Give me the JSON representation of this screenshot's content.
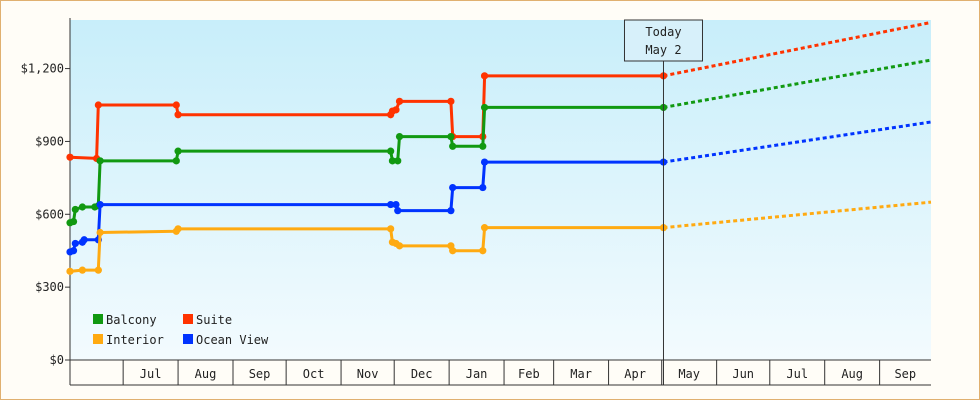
{
  "chart_data": {
    "type": "line",
    "title": "",
    "xlabel": "",
    "ylabel": "",
    "ylim": [
      0,
      1400
    ],
    "y_ticks": [
      0,
      300,
      600,
      900,
      1200
    ],
    "y_tick_labels": [
      "$0",
      "$300",
      "$600",
      "$900",
      "$1,200"
    ],
    "x_range": [
      "2018-06-01",
      "2019-09-30"
    ],
    "month_labels": [
      {
        "label": "Jul",
        "start": "2018-07-01",
        "end": "2018-08-01"
      },
      {
        "label": "Aug",
        "start": "2018-08-01",
        "end": "2018-09-01"
      },
      {
        "label": "Sep",
        "start": "2018-09-01",
        "end": "2018-10-01"
      },
      {
        "label": "Oct",
        "start": "2018-10-01",
        "end": "2018-11-01"
      },
      {
        "label": "Nov",
        "start": "2018-11-01",
        "end": "2018-12-01"
      },
      {
        "label": "Dec",
        "start": "2018-12-01",
        "end": "2019-01-01"
      },
      {
        "label": "Jan",
        "start": "2019-01-01",
        "end": "2019-02-01"
      },
      {
        "label": "Feb",
        "start": "2019-02-01",
        "end": "2019-03-01"
      },
      {
        "label": "Mar",
        "start": "2019-03-01",
        "end": "2019-04-01"
      },
      {
        "label": "Apr",
        "start": "2019-04-01",
        "end": "2019-05-01"
      },
      {
        "label": "May",
        "start": "2019-05-01",
        "end": "2019-06-01"
      },
      {
        "label": "Jun",
        "start": "2019-06-01",
        "end": "2019-07-01"
      },
      {
        "label": "Jul",
        "start": "2019-07-01",
        "end": "2019-08-01"
      },
      {
        "label": "Aug",
        "start": "2019-08-01",
        "end": "2019-09-01"
      },
      {
        "label": "Sep",
        "start": "2019-09-01",
        "end": "2019-10-01"
      }
    ],
    "today": {
      "date": "2019-05-02",
      "label_line1": "Today",
      "label_line2": "May 2"
    },
    "legend_position": "bottom-left",
    "grid": false,
    "series": [
      {
        "name": "Suite",
        "color": "#ff3300",
        "points": [
          [
            "2018-06-01",
            835
          ],
          [
            "2018-06-16",
            830
          ],
          [
            "2018-06-17",
            1050
          ],
          [
            "2018-07-31",
            1050
          ],
          [
            "2018-08-01",
            1010
          ],
          [
            "2018-11-29",
            1010
          ],
          [
            "2018-11-30",
            1025
          ],
          [
            "2018-12-02",
            1030
          ],
          [
            "2018-12-04",
            1065
          ],
          [
            "2019-01-02",
            1065
          ],
          [
            "2019-01-03",
            920
          ],
          [
            "2019-01-20",
            920
          ],
          [
            "2019-01-21",
            1170
          ],
          [
            "2019-05-02",
            1170
          ]
        ],
        "forecast": [
          [
            "2019-05-02",
            1170
          ],
          [
            "2019-09-30",
            1390
          ]
        ]
      },
      {
        "name": "Balcony",
        "color": "#119911",
        "points": [
          [
            "2018-06-01",
            565
          ],
          [
            "2018-06-03",
            570
          ],
          [
            "2018-06-04",
            620
          ],
          [
            "2018-06-08",
            630
          ],
          [
            "2018-06-15",
            630
          ],
          [
            "2018-06-17",
            635
          ],
          [
            "2018-06-18",
            820
          ],
          [
            "2018-07-31",
            820
          ],
          [
            "2018-08-01",
            860
          ],
          [
            "2018-11-29",
            860
          ],
          [
            "2018-11-30",
            820
          ],
          [
            "2018-12-03",
            820
          ],
          [
            "2018-12-04",
            920
          ],
          [
            "2019-01-02",
            920
          ],
          [
            "2019-01-03",
            880
          ],
          [
            "2019-01-20",
            880
          ],
          [
            "2019-01-21",
            1040
          ],
          [
            "2019-05-02",
            1040
          ]
        ],
        "forecast": [
          [
            "2019-05-02",
            1040
          ],
          [
            "2019-09-30",
            1235
          ]
        ]
      },
      {
        "name": "Ocean View",
        "color": "#0033ff",
        "points": [
          [
            "2018-06-01",
            445
          ],
          [
            "2018-06-03",
            450
          ],
          [
            "2018-06-04",
            480
          ],
          [
            "2018-06-08",
            485
          ],
          [
            "2018-06-09",
            495
          ],
          [
            "2018-06-17",
            495
          ],
          [
            "2018-06-18",
            640
          ],
          [
            "2018-11-29",
            640
          ],
          [
            "2018-12-02",
            640
          ],
          [
            "2018-12-03",
            615
          ],
          [
            "2019-01-02",
            615
          ],
          [
            "2019-01-03",
            710
          ],
          [
            "2019-01-20",
            710
          ],
          [
            "2019-01-21",
            815
          ],
          [
            "2019-05-02",
            815
          ]
        ],
        "forecast": [
          [
            "2019-05-02",
            815
          ],
          [
            "2019-09-30",
            980
          ]
        ]
      },
      {
        "name": "Interior",
        "color": "#ffaa11",
        "points": [
          [
            "2018-06-01",
            365
          ],
          [
            "2018-06-08",
            370
          ],
          [
            "2018-06-17",
            370
          ],
          [
            "2018-06-18",
            525
          ],
          [
            "2018-07-31",
            530
          ],
          [
            "2018-08-01",
            540
          ],
          [
            "2018-11-29",
            540
          ],
          [
            "2018-11-30",
            485
          ],
          [
            "2018-12-02",
            480
          ],
          [
            "2018-12-04",
            470
          ],
          [
            "2019-01-02",
            470
          ],
          [
            "2019-01-03",
            450
          ],
          [
            "2019-01-20",
            450
          ],
          [
            "2019-01-21",
            545
          ],
          [
            "2019-05-02",
            545
          ]
        ],
        "forecast": [
          [
            "2019-05-02",
            545
          ],
          [
            "2019-09-30",
            650
          ]
        ]
      }
    ],
    "legend": [
      {
        "name": "Balcony",
        "color": "#119911"
      },
      {
        "name": "Suite",
        "color": "#ff3300"
      },
      {
        "name": "Interior",
        "color": "#ffaa11"
      },
      {
        "name": "Ocean View",
        "color": "#0033ff"
      }
    ]
  }
}
